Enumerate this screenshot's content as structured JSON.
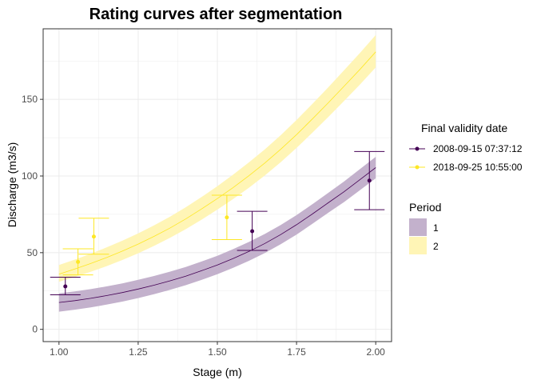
{
  "chart_data": {
    "type": "line",
    "title": "Rating curves after segmentation",
    "xlabel": "Stage (m)",
    "ylabel": "Discharge (m3/s)",
    "xlim": [
      0.95,
      2.05
    ],
    "ylim": [
      -8,
      196
    ],
    "x_ticks": [
      1.0,
      1.25,
      1.5,
      1.75,
      2.0
    ],
    "x_tick_labels": [
      "1.00",
      "1.25",
      "1.50",
      "1.75",
      "2.00"
    ],
    "y_ticks": [
      0,
      50,
      100,
      150
    ],
    "y_tick_labels": [
      "0",
      "50",
      "100",
      "150"
    ],
    "grid": true,
    "curve_x": [
      1.0,
      1.05,
      1.1,
      1.15,
      1.2,
      1.25,
      1.3,
      1.35,
      1.4,
      1.45,
      1.5,
      1.55,
      1.6,
      1.65,
      1.7,
      1.75,
      1.8,
      1.85,
      1.9,
      1.95,
      2.0
    ],
    "bands": [
      {
        "period": "1",
        "color": "#440154",
        "fill": "#c3b1cc",
        "median": [
          17.5,
          18.7,
          20.2,
          22.0,
          24.0,
          26.3,
          28.8,
          31.6,
          34.7,
          38.2,
          42.0,
          46.2,
          50.8,
          56.0,
          61.8,
          68.2,
          75.2,
          82.5,
          89.7,
          97.6,
          105.5
        ],
        "lower": [
          11.5,
          12.8,
          14.3,
          16.1,
          18.1,
          20.4,
          22.9,
          25.7,
          28.8,
          32.2,
          36.0,
          40.1,
          44.7,
          49.8,
          55.5,
          61.8,
          68.8,
          76.0,
          83.0,
          90.7,
          98.5
        ],
        "upper": [
          23.5,
          24.7,
          26.2,
          28.0,
          30.0,
          32.3,
          34.8,
          37.6,
          40.7,
          44.2,
          48.0,
          52.3,
          57.0,
          62.2,
          68.0,
          74.5,
          81.6,
          89.0,
          96.4,
          104.5,
          112.5
        ]
      },
      {
        "period": "2",
        "color": "#fde725",
        "fill": "#fff5b6",
        "median": [
          36.0,
          39.3,
          42.9,
          46.8,
          51.0,
          55.6,
          60.6,
          66.0,
          72.0,
          78.5,
          85.3,
          92.5,
          100.2,
          108.5,
          117.4,
          127.0,
          137.2,
          147.7,
          158.5,
          169.5,
          181.0
        ],
        "lower": [
          31.0,
          34.1,
          37.5,
          41.2,
          45.2,
          49.6,
          54.4,
          59.6,
          65.3,
          71.5,
          78.1,
          85.0,
          92.4,
          100.4,
          109.0,
          118.3,
          128.2,
          138.4,
          148.9,
          159.6,
          170.8
        ],
        "upper": [
          42.0,
          45.5,
          49.3,
          53.4,
          57.8,
          62.6,
          67.8,
          73.4,
          79.6,
          86.3,
          93.4,
          100.9,
          108.9,
          117.4,
          126.6,
          136.5,
          147.0,
          157.8,
          168.9,
          180.2,
          192.0
        ]
      }
    ],
    "points": [
      {
        "date": "2008-09-15 07:37:12",
        "color": "#440154",
        "data": [
          {
            "x": 1.02,
            "y": 28.0,
            "lo": 22.5,
            "hi": 34.0
          },
          {
            "x": 1.61,
            "y": 64.0,
            "lo": 51.5,
            "hi": 77.0
          },
          {
            "x": 1.98,
            "y": 97.0,
            "lo": 78.0,
            "hi": 116.0
          }
        ]
      },
      {
        "date": "2018-09-25 10:55:00",
        "color": "#fde725",
        "data": [
          {
            "x": 1.06,
            "y": 44.0,
            "lo": 35.5,
            "hi": 52.5
          },
          {
            "x": 1.11,
            "y": 60.5,
            "lo": 49.0,
            "hi": 72.5
          },
          {
            "x": 1.53,
            "y": 73.0,
            "lo": 58.5,
            "hi": 87.5
          }
        ]
      }
    ],
    "legends": [
      {
        "title": "Final validity date",
        "entries": [
          "2008-09-15 07:37:12",
          "2018-09-25 10:55:00"
        ]
      },
      {
        "title": "Period",
        "entries": [
          "1",
          "2"
        ]
      }
    ],
    "legend_position": "right"
  }
}
